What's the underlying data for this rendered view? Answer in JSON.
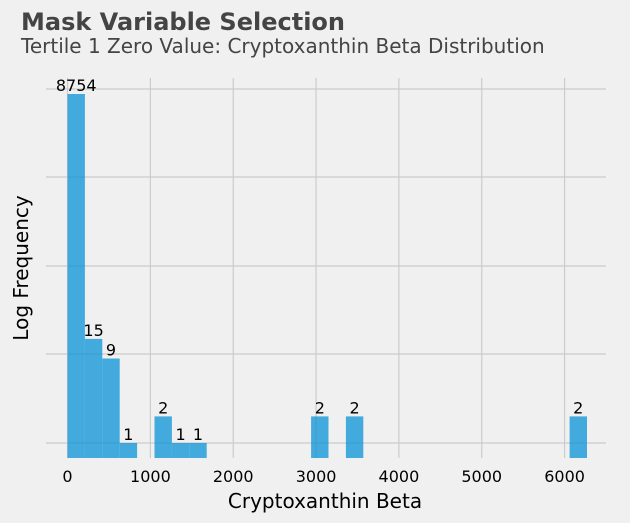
{
  "chart_data": {
    "type": "bar",
    "title": "Mask Variable Selection",
    "subtitle": "Tertile 1 Zero Value: Cryptoxanthin Beta Distribution",
    "xlabel": "Cryptoxanthin Beta",
    "ylabel": "Log Frequency",
    "x_ticks": [
      0,
      1000,
      2000,
      3000,
      4000,
      5000,
      6000
    ],
    "xlim": [
      -260,
      6500
    ],
    "y_scale": "log",
    "grid": true,
    "colors": {
      "bar": "#008fd5",
      "grid": "#cbcbcb",
      "background": "#f0f0f0"
    },
    "bins": [
      {
        "x0": 0,
        "x1": 210,
        "count": 8754
      },
      {
        "x0": 210,
        "x1": 420,
        "count": 15
      },
      {
        "x0": 420,
        "x1": 630,
        "count": 9
      },
      {
        "x0": 630,
        "x1": 840,
        "count": 1
      },
      {
        "x0": 1050,
        "x1": 1260,
        "count": 2
      },
      {
        "x0": 1260,
        "x1": 1470,
        "count": 1
      },
      {
        "x0": 1470,
        "x1": 1680,
        "count": 1
      },
      {
        "x0": 2940,
        "x1": 3150,
        "count": 2
      },
      {
        "x0": 3360,
        "x1": 3570,
        "count": 2
      },
      {
        "x0": 6060,
        "x1": 6270,
        "count": 2
      }
    ]
  }
}
